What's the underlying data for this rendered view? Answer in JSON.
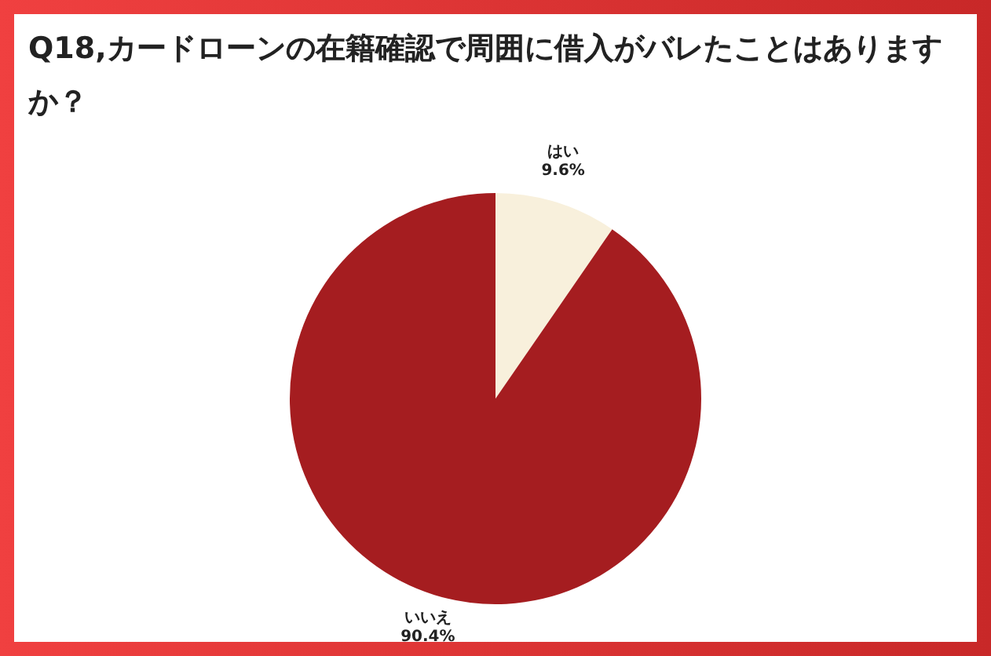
{
  "chart_data": {
    "type": "pie",
    "title": "Q18,カードローンの在籍確認で周囲に借入がバレたことはありますか？",
    "categories": [
      "はい",
      "いいえ"
    ],
    "values": [
      9.6,
      90.4
    ],
    "value_labels": [
      "9.6%",
      "90.4%"
    ],
    "colors": [
      "#f8f0dc",
      "#a51d20"
    ],
    "legend": false
  }
}
